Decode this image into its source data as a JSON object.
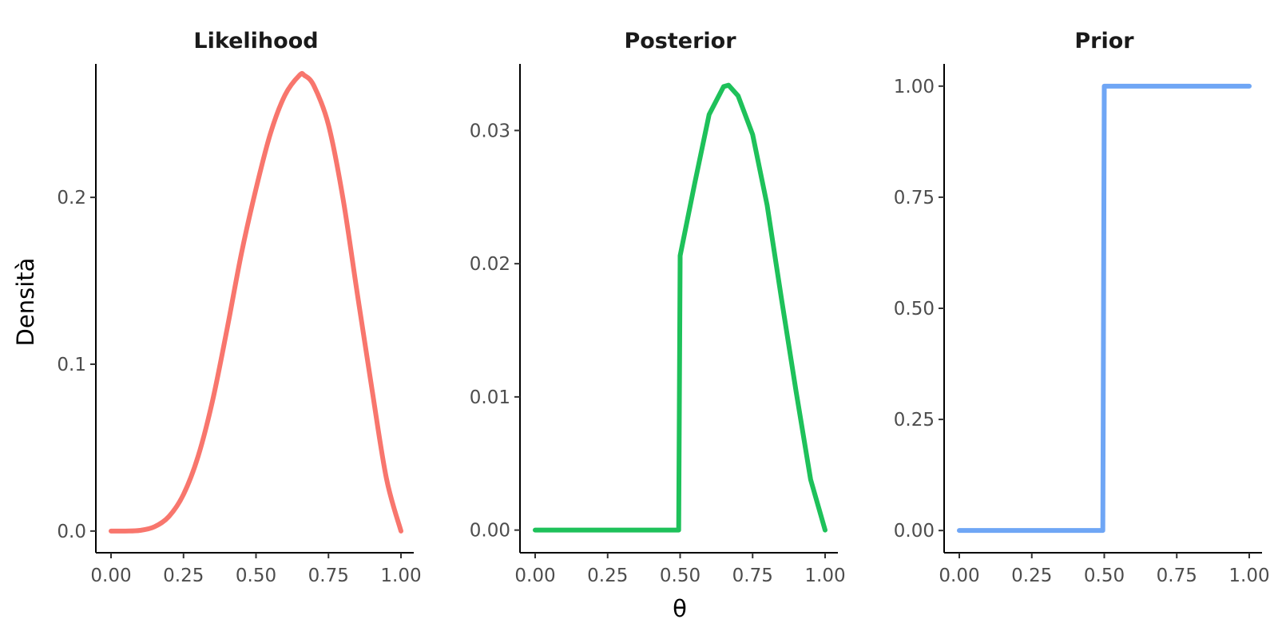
{
  "chart_data": [
    {
      "type": "line",
      "title": "Likelihood",
      "xlabel": "θ",
      "ylabel": "Densità",
      "xlim": [
        0,
        1
      ],
      "ylim": [
        -0.013,
        0.28
      ],
      "x_ticks": [
        0,
        0.25,
        0.5,
        0.75,
        1
      ],
      "x_tick_labels": [
        "0.00",
        "0.25",
        "0.50",
        "0.75",
        "1.00"
      ],
      "y_ticks": [
        0,
        0.1,
        0.2
      ],
      "y_tick_labels": [
        "0.0",
        "0.1",
        "0.2"
      ],
      "grid": false,
      "series": [
        {
          "color": "#F8766D",
          "x": [
            0,
            0.05,
            0.1,
            0.15,
            0.2,
            0.25,
            0.3,
            0.35,
            0.4,
            0.45,
            0.5,
            0.55,
            0.6,
            0.65,
            0.667,
            0.7,
            0.75,
            0.8,
            0.85,
            0.9,
            0.95,
            1
          ],
          "y": [
            0,
            1e-05,
            0.0004,
            0.0026,
            0.0088,
            0.022,
            0.0446,
            0.078,
            0.1209,
            0.1666,
            0.2051,
            0.2384,
            0.2613,
            0.2732,
            0.2731,
            0.2668,
            0.2434,
            0.1994,
            0.1416,
            0.085,
            0.0314,
            0
          ]
        }
      ]
    },
    {
      "type": "line",
      "title": "Posterior",
      "xlabel": "θ",
      "ylabel": "",
      "xlim": [
        0,
        1
      ],
      "ylim": [
        -0.0017,
        0.035
      ],
      "x_ticks": [
        0,
        0.25,
        0.5,
        0.75,
        1
      ],
      "x_tick_labels": [
        "0.00",
        "0.25",
        "0.50",
        "0.75",
        "1.00"
      ],
      "y_ticks": [
        0,
        0.01,
        0.02,
        0.03
      ],
      "y_tick_labels": [
        "0.00",
        "0.01",
        "0.02",
        "0.03"
      ],
      "grid": false,
      "series": [
        {
          "color": "#1EC15A",
          "x": [
            0,
            0.1,
            0.2,
            0.3,
            0.4,
            0.49,
            0.495,
            0.5,
            0.55,
            0.6,
            0.65,
            0.667,
            0.7,
            0.75,
            0.8,
            0.85,
            0.9,
            0.95,
            1
          ],
          "y": [
            0,
            0,
            0,
            0,
            0,
            0,
            0,
            0.0206,
            0.026,
            0.0312,
            0.0333,
            0.0334,
            0.0326,
            0.0297,
            0.0244,
            0.0173,
            0.0104,
            0.0038,
            0
          ]
        }
      ]
    },
    {
      "type": "line",
      "title": "Prior",
      "xlabel": "θ",
      "ylabel": "",
      "xlim": [
        0,
        1
      ],
      "ylim": [
        -0.05,
        1.05
      ],
      "x_ticks": [
        0,
        0.25,
        0.5,
        0.75,
        1
      ],
      "x_tick_labels": [
        "0.00",
        "0.25",
        "0.50",
        "0.75",
        "1.00"
      ],
      "y_ticks": [
        0,
        0.25,
        0.5,
        0.75,
        1
      ],
      "y_tick_labels": [
        "0.00",
        "0.25",
        "0.50",
        "0.75",
        "1.00"
      ],
      "grid": false,
      "series": [
        {
          "color": "#6FA6F5",
          "x": [
            0,
            0.1,
            0.2,
            0.3,
            0.4,
            0.49,
            0.495,
            0.5,
            0.6,
            0.7,
            0.8,
            0.9,
            1
          ],
          "y": [
            0,
            0,
            0,
            0,
            0,
            0,
            0,
            1,
            1,
            1,
            1,
            1,
            1
          ]
        }
      ]
    }
  ],
  "shared_xlabel": "θ",
  "shared_ylabel": "Densità"
}
